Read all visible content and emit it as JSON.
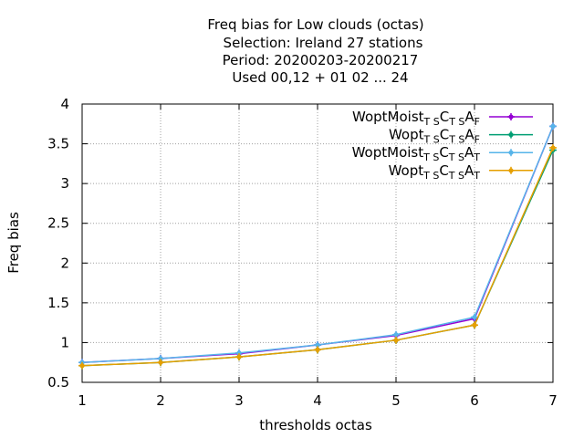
{
  "title_lines": [
    "Freq bias  for Low clouds (octas)",
    "Selection: Ireland      27 stations",
    "Period: 20200203-20200217",
    "Used  00,12  + 01 02 ... 24"
  ],
  "chart_data": {
    "type": "line",
    "xlabel": "thresholds octas",
    "ylabel": "Freq bias",
    "xlim": [
      1,
      7
    ],
    "ylim": [
      0.5,
      4
    ],
    "x_ticks": [
      "1",
      "2",
      "3",
      "4",
      "5",
      "6",
      "7"
    ],
    "y_ticks": [
      "0.5",
      "1",
      "1.5",
      "2",
      "2.5",
      "3",
      "3.5",
      "4"
    ],
    "grid": true,
    "legend_position": "top-right",
    "x": [
      1,
      2,
      3,
      4,
      5,
      6,
      7
    ],
    "series": [
      {
        "name_base": "WoptMoist",
        "sub1": "T S",
        "sub2": "T S",
        "sub3": "F",
        "color": "#9400d3",
        "values": [
          0.75,
          0.8,
          0.86,
          0.97,
          1.09,
          1.3,
          3.72
        ]
      },
      {
        "name_base": "Wopt",
        "sub1": "T S",
        "sub2": "T S",
        "sub3": "F",
        "color": "#009e73",
        "values": [
          0.71,
          0.75,
          0.82,
          0.91,
          1.03,
          1.22,
          3.42
        ]
      },
      {
        "name_base": "WoptMoist",
        "sub1": "T S",
        "sub2": "T S",
        "sub3": "T",
        "color": "#56b4e9",
        "values": [
          0.75,
          0.8,
          0.87,
          0.97,
          1.1,
          1.32,
          3.72
        ]
      },
      {
        "name_base": "Wopt",
        "sub1": "T S",
        "sub2": "T S",
        "sub3": "T",
        "color": "#e69f00",
        "values": [
          0.71,
          0.75,
          0.82,
          0.91,
          1.03,
          1.22,
          3.45
        ]
      }
    ]
  }
}
